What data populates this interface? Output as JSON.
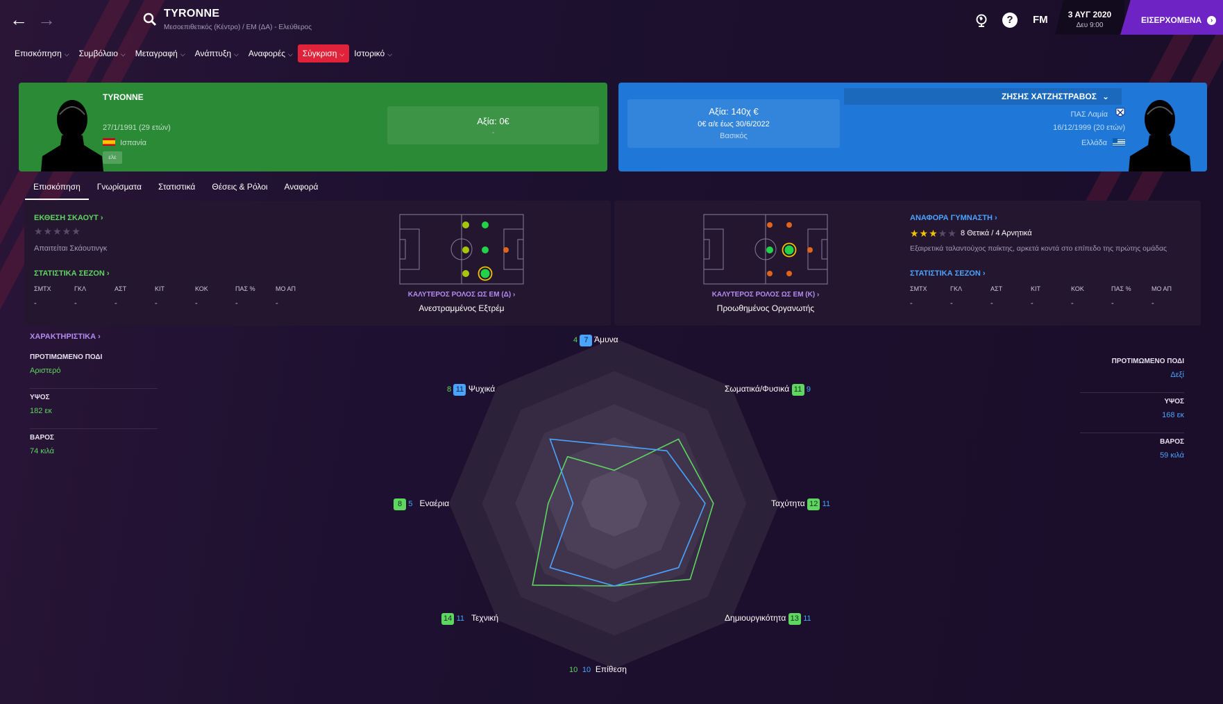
{
  "header": {
    "player_name": "TYRONNE",
    "player_subtitle": "Μεσοεπιθετικός (Κέντρο) / ΕΜ (ΔΑ) - Ελεύθερος",
    "fm_label": "FM",
    "date": "3 ΑΥΓ 2020",
    "day_time": "Δευ 9:00",
    "inbox_label": "ΕΙΣΕΡΧΟΜΕΝΑ"
  },
  "menu": [
    {
      "label": "Επισκόπηση"
    },
    {
      "label": "Συμβόλαιο"
    },
    {
      "label": "Μεταγραφή"
    },
    {
      "label": "Ανάπτυξη"
    },
    {
      "label": "Αναφορές"
    },
    {
      "label": "Σύγκριση",
      "active": true
    },
    {
      "label": "Ιστορικό"
    }
  ],
  "left_player": {
    "name": "TYRONNE",
    "dob": "27/1/1991 (29 ετών)",
    "nation": "Ισπανία",
    "tag": "ελε",
    "value_label": "Αξία: 0€",
    "value_sub": "-"
  },
  "right_player": {
    "name": "ΖΗΣΗΣ ΧΑΤΖΗΣΤΡΑΒΟΣ",
    "club": "ΠΑΣ Λαμία",
    "dob": "16/12/1999 (20 ετών)",
    "nation": "Ελλάδα",
    "value_label": "Αξία: 140χ €",
    "contract": "0€ α/ε έως 30/6/2022",
    "status": "Βασικός"
  },
  "subtabs": [
    {
      "label": "Επισκόπηση",
      "active": true
    },
    {
      "label": "Γνωρίσματα"
    },
    {
      "label": "Στατιστικά"
    },
    {
      "label": "Θέσεις & Ρόλοι"
    },
    {
      "label": "Αναφορά"
    }
  ],
  "left_panel": {
    "scout_title": "ΕΚΘΕΣΗ ΣΚΑΟΥΤ",
    "scout_note": "Απαιτείται Σκάουτινγκ",
    "season_title": "ΣΤΑΤΙΣΤΙΚΑ ΣΕΖΟΝ",
    "stat_heads": [
      "ΣΜΤΧ",
      "ΓΚΛ",
      "ΑΣΤ",
      "ΚΙΤ",
      "ΚΟΚ",
      "ΠΑΣ %",
      "ΜΟ ΑΠ"
    ],
    "stat_vals": [
      "-",
      "-",
      "-",
      "-",
      "-",
      "-",
      "-"
    ],
    "best_role_title": "ΚΑΛΥΤΕΡΟΣ ΡΟΛΟΣ ΩΣ ΕΜ (Δ)",
    "best_role": "Ανεστραμμένος Εξτρέμ"
  },
  "right_panel": {
    "gym_title": "ΑΝΑΦΟΡΑ ΓΥΜΝΑΣΤΗ",
    "gym_summary": "8 Θετικά / 4 Αρνητικά",
    "gym_rating": 2.5,
    "gym_note": "Εξαιρετικά ταλαντούχος παίκτης, αρκετά κοντά στο επίπεδο της πρώτης ομάδας",
    "season_title": "ΣΤΑΤΙΣΤΙΚΑ ΣΕΖΟΝ",
    "stat_heads": [
      "ΣΜΤΧ",
      "ΓΚΛ",
      "ΑΣΤ",
      "ΚΙΤ",
      "ΚΟΚ",
      "ΠΑΣ %",
      "ΜΟ ΑΠ"
    ],
    "stat_vals": [
      "-",
      "-",
      "-",
      "-",
      "-",
      "-",
      "-"
    ],
    "best_role_title": "ΚΑΛΥΤΕΡΟΣ ΡΟΛΟΣ ΩΣ ΕΜ (Κ)",
    "best_role": "Προωθημένος Οργανωτής"
  },
  "attributes": {
    "title": "ΧΑΡΑΚΤΗΡΙΣΤΙΚΑ",
    "left": [
      {
        "label": "ΠΡΟΤΙΜΩΜΕΝΟ ΠΟΔΙ",
        "value": "Αριστερό"
      },
      {
        "label": "ΥΨΟΣ",
        "value": "182 εκ"
      },
      {
        "label": "ΒΑΡΟΣ",
        "value": "74 κιλά"
      }
    ],
    "right": [
      {
        "label": "ΠΡΟΤΙΜΩΜΕΝΟ ΠΟΔΙ",
        "value": "Δεξί"
      },
      {
        "label": "ΥΨΟΣ",
        "value": "168 εκ"
      },
      {
        "label": "ΒΑΡΟΣ",
        "value": "59 κιλά"
      }
    ]
  },
  "radar": {
    "axes": [
      {
        "label": "Άμυνα",
        "left": 4,
        "right": 7
      },
      {
        "label": "Σωματικά/Φυσικά",
        "left": 11,
        "right": 9
      },
      {
        "label": "Ταχύτητα",
        "left": 12,
        "right": 11
      },
      {
        "label": "Δημιουργικότητα",
        "left": 13,
        "right": 11
      },
      {
        "label": "Επίθεση",
        "left": 10,
        "right": 10
      },
      {
        "label": "Τεχνική",
        "left": 14,
        "right": 11
      },
      {
        "label": "Εναέρια",
        "left": 8,
        "right": 5
      },
      {
        "label": "Ψυχικά",
        "left": 8,
        "right": 11
      }
    ],
    "max": 20,
    "colors": {
      "left": "#5ed660",
      "right": "#4aa3ff"
    }
  },
  "pitch_left": {
    "dots": [
      {
        "color": "#a7c80a"
      },
      {
        "color": "#22d34a"
      },
      {
        "color": "#a7c80a"
      },
      {
        "color": "#22d34a"
      },
      {
        "color": "#e0651c"
      },
      {
        "color": "#a7c80a"
      },
      {
        "color": "#22d34a",
        "ring": true
      }
    ]
  },
  "pitch_right": {
    "dots": [
      {
        "color": "#e0651c"
      },
      {
        "color": "#e0651c"
      },
      {
        "color": "#22d34a"
      },
      {
        "color": "#22d34a",
        "ring": true
      },
      {
        "color": "#e0651c"
      },
      {
        "color": "#e0651c"
      },
      {
        "color": "#e0651c"
      }
    ]
  }
}
